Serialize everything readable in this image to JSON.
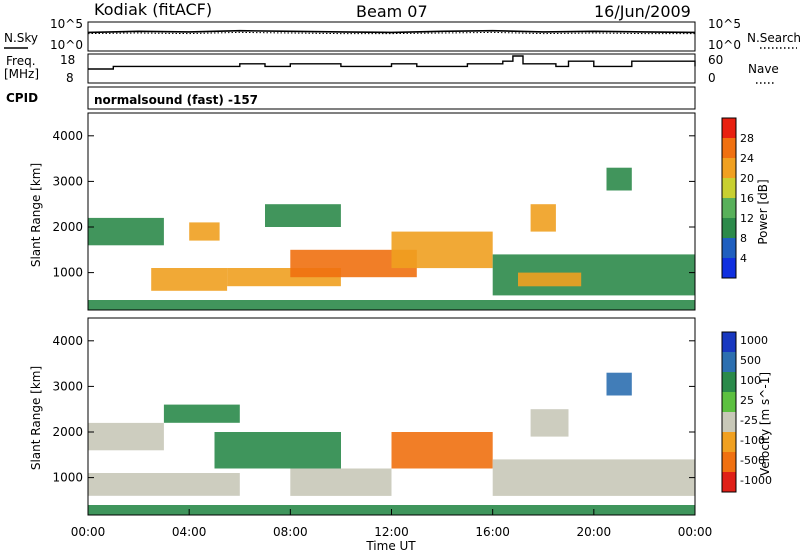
{
  "header": {
    "station": "Kodiak (fitACF)",
    "beam": "Beam 07",
    "date": "16/Jun/2009"
  },
  "noise_panel": {
    "left_label": "N.Sky",
    "right_label": "N.Search",
    "left_ticks": [
      "10^5",
      "10^0"
    ],
    "right_ticks": [
      "10^5",
      "10^0"
    ]
  },
  "freq_panel": {
    "left_label_line1": "Freq.",
    "left_label_line2": "[MHz]",
    "left_ticks": [
      "18",
      "8"
    ],
    "right_label": "Nave",
    "right_ticks": [
      "60",
      "0"
    ]
  },
  "cpid": {
    "label": "CPID",
    "text": "normalsound (fast) -157"
  },
  "x_axis": {
    "label": "Time UT",
    "ticks": [
      "00:00",
      "04:00",
      "08:00",
      "12:00",
      "16:00",
      "20:00",
      "00:00"
    ]
  },
  "colors": {
    "power_scale": [
      "#1030e0",
      "#1f5fbf",
      "#2c8a4a",
      "#58b05a",
      "#c8d030",
      "#f0a020",
      "#f07010",
      "#e82010"
    ],
    "velocity_scale": [
      "#1838c0",
      "#2c6fb0",
      "#2a8a4a",
      "#5cc040",
      "#c8c8b8",
      "#f0a020",
      "#f07010",
      "#e02018"
    ]
  },
  "chart_data": [
    {
      "type": "line",
      "panel": "noise",
      "series": [
        {
          "name": "N.Sky",
          "x": [
            0,
            2,
            4,
            6,
            8,
            10,
            12,
            14,
            16,
            18,
            20,
            22,
            24
          ],
          "y": [
            3.2,
            3.4,
            3.3,
            3.5,
            3.4,
            3.3,
            3.2,
            3.4,
            3.5,
            3.3,
            3.4,
            3.3,
            3.2
          ]
        },
        {
          "name": "N.Search",
          "x": [
            0,
            2,
            4,
            6,
            8,
            10,
            12,
            14,
            16,
            18,
            20,
            22,
            24
          ],
          "y": [
            3.0,
            3.1,
            3.0,
            3.2,
            3.1,
            3.0,
            3.0,
            3.1,
            3.2,
            3.0,
            3.1,
            3.0,
            3.0
          ]
        }
      ],
      "xlim": [
        0,
        24
      ]
    },
    {
      "type": "line",
      "panel": "frequency",
      "series": [
        {
          "name": "Freq.",
          "x": [
            0,
            1,
            3,
            4,
            5,
            6,
            7,
            8,
            9,
            10,
            11,
            12,
            13,
            14,
            15,
            16,
            16.4,
            16.8,
            17.2,
            18.5,
            19,
            19.5,
            20,
            21,
            21.5,
            23,
            24
          ],
          "y": [
            13,
            14,
            14,
            14,
            14,
            15,
            14,
            15,
            15,
            14,
            14,
            15,
            14,
            14,
            15,
            15,
            16,
            18,
            15,
            14,
            16,
            16,
            14,
            14,
            16,
            16,
            14
          ]
        }
      ],
      "xlim": [
        0,
        24
      ],
      "ylim": [
        8,
        18
      ]
    },
    {
      "type": "heatmap",
      "panel": "power",
      "ylabel": "Slant Range [km]",
      "xlabel": "Time UT",
      "xlim": [
        0,
        24
      ],
      "ylim": [
        180,
        4500
      ],
      "y_ticks": [
        1000,
        2000,
        3000,
        4000
      ],
      "colorbar": {
        "label": "Power [dB]",
        "ticks": [
          4,
          8,
          12,
          16,
          20,
          24,
          28
        ]
      },
      "regions": [
        {
          "t0": 0,
          "t1": 24,
          "r0": 180,
          "r1": 400,
          "value": 10
        },
        {
          "t0": 0,
          "t1": 3,
          "r0": 1600,
          "r1": 2200,
          "value": 10
        },
        {
          "t0": 2.5,
          "t1": 5.5,
          "r0": 600,
          "r1": 1100,
          "value": 20
        },
        {
          "t0": 4,
          "t1": 5.2,
          "r0": 1700,
          "r1": 2100,
          "value": 22
        },
        {
          "t0": 5.5,
          "t1": 10,
          "r0": 700,
          "r1": 1100,
          "value": 22
        },
        {
          "t0": 7,
          "t1": 10,
          "r0": 2000,
          "r1": 2500,
          "value": 8
        },
        {
          "t0": 8,
          "t1": 13,
          "r0": 900,
          "r1": 1500,
          "value": 24
        },
        {
          "t0": 12,
          "t1": 16,
          "r0": 1100,
          "r1": 1900,
          "value": 22
        },
        {
          "t0": 16,
          "t1": 24,
          "r0": 500,
          "r1": 1400,
          "value": 10
        },
        {
          "t0": 17,
          "t1": 19.5,
          "r0": 700,
          "r1": 1000,
          "value": 22
        },
        {
          "t0": 17.5,
          "t1": 18.5,
          "r0": 1900,
          "r1": 2500,
          "value": 20
        },
        {
          "t0": 20.5,
          "t1": 21.5,
          "r0": 2800,
          "r1": 3300,
          "value": 8
        }
      ]
    },
    {
      "type": "heatmap",
      "panel": "velocity",
      "ylabel": "Slant Range [km]",
      "xlabel": "Time UT",
      "xlim": [
        0,
        24
      ],
      "ylim": [
        180,
        4500
      ],
      "y_ticks": [
        1000,
        2000,
        3000,
        4000
      ],
      "colorbar": {
        "label": "Velocity [m s^-1]",
        "ticks": [
          1000,
          500,
          100,
          25,
          -25,
          -100,
          -500,
          -1000
        ]
      },
      "regions": [
        {
          "t0": 0,
          "t1": 24,
          "r0": 180,
          "r1": 400,
          "value": 100
        },
        {
          "t0": 0,
          "t1": 6,
          "r0": 600,
          "r1": 1100,
          "value": 0
        },
        {
          "t0": 0,
          "t1": 3,
          "r0": 1600,
          "r1": 2200,
          "value": 0
        },
        {
          "t0": 3,
          "t1": 6,
          "r0": 2200,
          "r1": 2600,
          "value": 200
        },
        {
          "t0": 5,
          "t1": 10,
          "r0": 1200,
          "r1": 2000,
          "value": 300
        },
        {
          "t0": 8,
          "t1": 12,
          "r0": 600,
          "r1": 1200,
          "value": 0
        },
        {
          "t0": 12,
          "t1": 16,
          "r0": 1200,
          "r1": 2000,
          "value": -150
        },
        {
          "t0": 16,
          "t1": 24,
          "r0": 600,
          "r1": 1400,
          "value": 0
        },
        {
          "t0": 17.5,
          "t1": 19,
          "r0": 1900,
          "r1": 2500,
          "value": 0
        },
        {
          "t0": 20.5,
          "t1": 21.5,
          "r0": 2800,
          "r1": 3300,
          "value": 900
        }
      ]
    }
  ]
}
